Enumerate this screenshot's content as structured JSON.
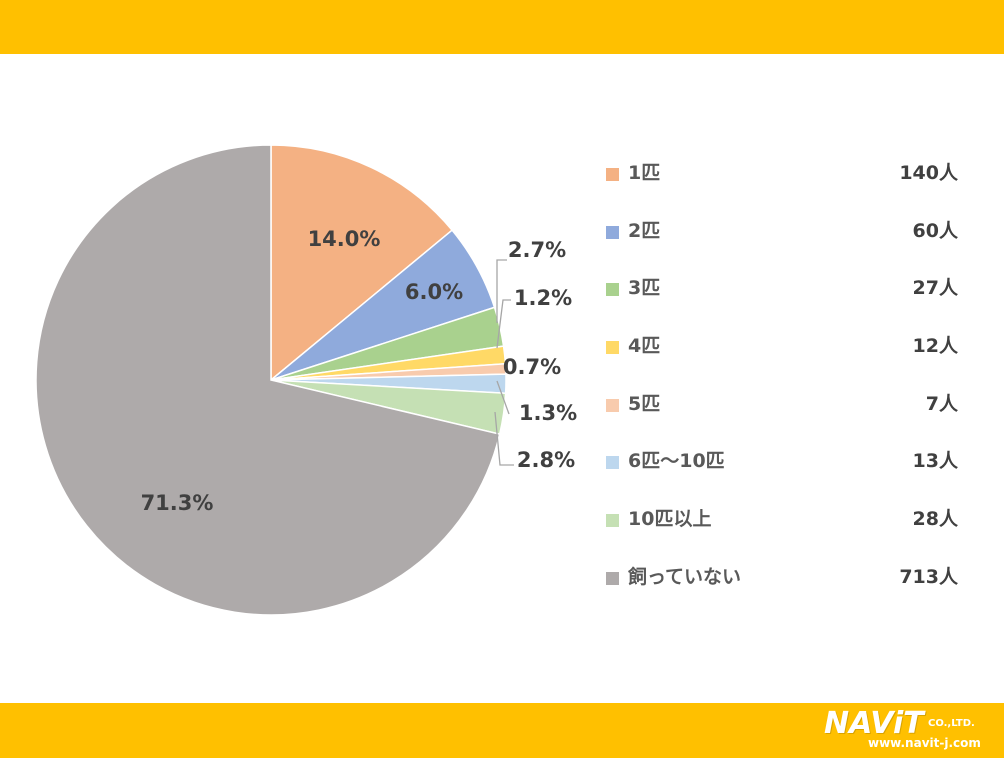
{
  "chart_data": {
    "type": "pie",
    "slices": [
      {
        "label": "1匹",
        "count": "140人",
        "value": 14.0,
        "value_label": "14.0%",
        "color": "#F4B183"
      },
      {
        "label": "2匹",
        "count": "60人",
        "value": 6.0,
        "value_label": "6.0%",
        "color": "#8FAADC"
      },
      {
        "label": "3匹",
        "count": "27人",
        "value": 2.7,
        "value_label": "2.7%",
        "color": "#A9D18E"
      },
      {
        "label": "4匹",
        "count": "12人",
        "value": 1.2,
        "value_label": "1.2%",
        "color": "#FFD966"
      },
      {
        "label": "5匹",
        "count": "7人",
        "value": 0.7,
        "value_label": "0.7%",
        "color": "#F8CBAD"
      },
      {
        "label": "6匹〜10匹",
        "count": "13人",
        "value": 1.3,
        "value_label": "1.3%",
        "color": "#BDD7EE"
      },
      {
        "label": "10匹以上",
        "count": "28人",
        "value": 2.8,
        "value_label": "2.8%",
        "color": "#C5E0B4"
      },
      {
        "label": "飼っていない",
        "count": "713人",
        "value": 71.3,
        "value_label": "71.3%",
        "color": "#AEAAAA"
      }
    ],
    "legend_position": "right"
  },
  "branding": {
    "logo_main": "NAViT",
    "logo_suffix": "CO.,LTD.",
    "logo_url": "www.navit-j.com",
    "band_color": "#FFC000"
  }
}
